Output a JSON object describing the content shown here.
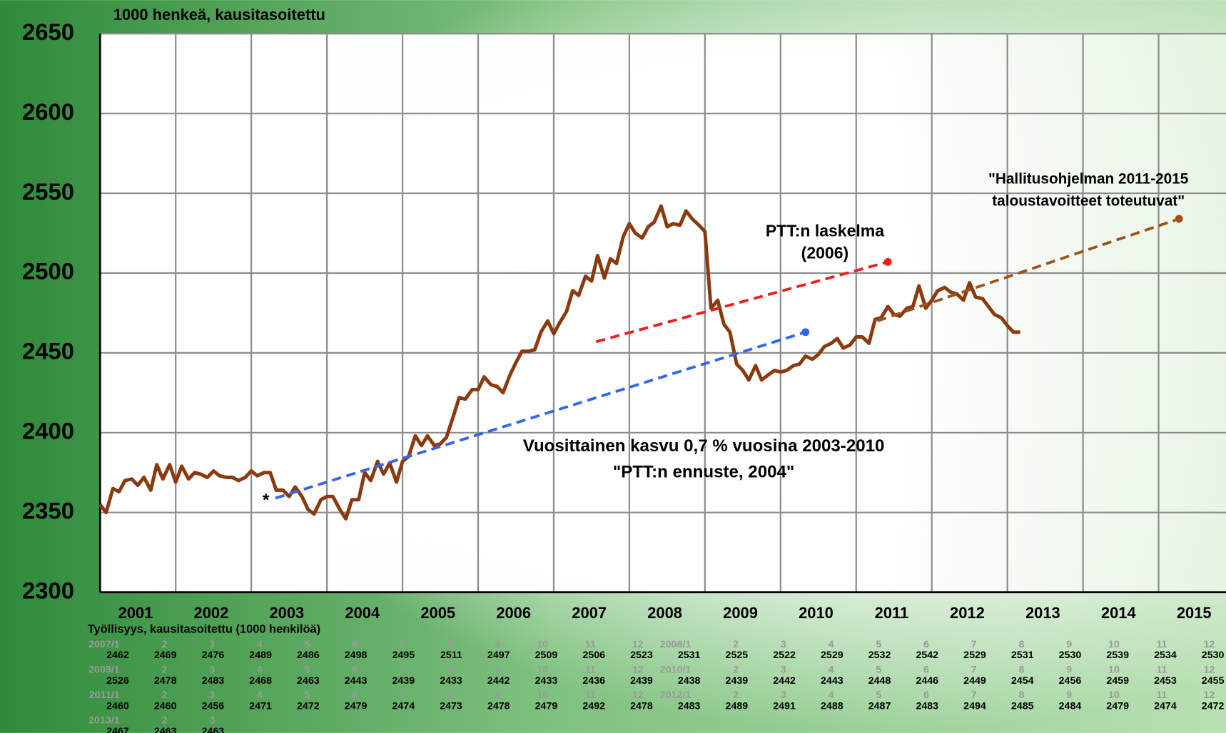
{
  "chart_data": {
    "type": "line",
    "title": "1000 henkeä, kausitasoitettu",
    "ylim": [
      2300,
      2650
    ],
    "yticks": [
      2300,
      2350,
      2400,
      2450,
      2500,
      2550,
      2600,
      2650
    ],
    "xlim": [
      2001,
      2016
    ],
    "xticks": [
      2001,
      2002,
      2003,
      2004,
      2005,
      2006,
      2007,
      2008,
      2009,
      2010,
      2011,
      2012,
      2013,
      2014,
      2015
    ],
    "grid": true,
    "series": [
      {
        "color": "#8b3a0f",
        "x": [
          2001,
          2001.08,
          2001.17,
          2001.25,
          2001.33,
          2001.42,
          2001.5,
          2001.58,
          2001.67,
          2001.75,
          2001.83,
          2001.92,
          2002,
          2002.08,
          2002.17,
          2002.25,
          2002.33,
          2002.42,
          2002.5,
          2002.58,
          2002.67,
          2002.75,
          2002.83,
          2002.92,
          2003,
          2003.08,
          2003.17,
          2003.25,
          2003.33,
          2003.42,
          2003.5,
          2003.58,
          2003.67,
          2003.75,
          2003.83,
          2003.92,
          2004,
          2004.08,
          2004.17,
          2004.25,
          2004.33,
          2004.42,
          2004.5,
          2004.58,
          2004.67,
          2004.75,
          2004.83,
          2004.92,
          2005,
          2005.08,
          2005.17,
          2005.25,
          2005.33,
          2005.42,
          2005.5,
          2005.58,
          2005.67,
          2005.75,
          2005.83,
          2005.92,
          2006,
          2006.08,
          2006.17,
          2006.25,
          2006.33,
          2006.42,
          2006.5,
          2006.58,
          2006.67,
          2006.75,
          2006.83,
          2006.92,
          2007,
          2007.08,
          2007.17,
          2007.25,
          2007.33,
          2007.42,
          2007.5,
          2007.58,
          2007.67,
          2007.75,
          2007.83,
          2007.92,
          2008,
          2008.08,
          2008.17,
          2008.25,
          2008.33,
          2008.42,
          2008.5,
          2008.58,
          2008.67,
          2008.75,
          2008.83,
          2008.92,
          2009,
          2009.08,
          2009.17,
          2009.25,
          2009.33,
          2009.42,
          2009.5,
          2009.58,
          2009.67,
          2009.75,
          2009.83,
          2009.92,
          2010,
          2010.08,
          2010.17,
          2010.25,
          2010.33,
          2010.42,
          2010.5,
          2010.58,
          2010.67,
          2010.75,
          2010.83,
          2010.92,
          2011,
          2011.08,
          2011.17,
          2011.25,
          2011.33,
          2011.42,
          2011.5,
          2011.58,
          2011.67,
          2011.75,
          2011.83,
          2011.92,
          2012,
          2012.08,
          2012.17,
          2012.25,
          2012.33,
          2012.42,
          2012.5,
          2012.58,
          2012.67,
          2012.75,
          2012.83,
          2012.92,
          2013,
          2013.08,
          2013.17
        ],
        "values": [
          2355,
          2350,
          2365,
          2363,
          2370,
          2371,
          2367,
          2372,
          2364,
          2380,
          2371,
          2380,
          2369,
          2379,
          2371,
          2375,
          2374,
          2372,
          2376,
          2373,
          2372,
          2372,
          2370,
          2372,
          2376,
          2373,
          2375,
          2375,
          2364,
          2364,
          2360,
          2366,
          2360,
          2352,
          2349,
          2358,
          2360,
          2360,
          2352,
          2346,
          2358,
          2358,
          2375,
          2370,
          2382,
          2374,
          2381,
          2369,
          2382,
          2385,
          2398,
          2392,
          2398,
          2392,
          2393,
          2397,
          2410,
          2422,
          2421,
          2427,
          2427,
          2435,
          2430,
          2429,
          2425,
          2436,
          2444,
          2451,
          2451,
          2452,
          2463,
          2470,
          2462,
          2469,
          2476,
          2489,
          2486,
          2498,
          2495,
          2511,
          2497,
          2509,
          2506,
          2523,
          2531,
          2525,
          2522,
          2529,
          2532,
          2542,
          2529,
          2531,
          2530,
          2539,
          2534,
          2530,
          2526,
          2478,
          2483,
          2468,
          2463,
          2443,
          2439,
          2433,
          2442,
          2433,
          2436,
          2439,
          2438,
          2439,
          2442,
          2443,
          2448,
          2446,
          2449,
          2454,
          2456,
          2459,
          2453,
          2455,
          2460,
          2460,
          2456,
          2471,
          2472,
          2479,
          2474,
          2473,
          2478,
          2479,
          2492,
          2478,
          2483,
          2489,
          2491,
          2488,
          2487,
          2483,
          2494,
          2485,
          2484,
          2479,
          2474,
          2472,
          2467,
          2463,
          2463
        ]
      },
      {
        "color": "#3366ee",
        "dashed": true,
        "x": [
          2003.32,
          2010.33
        ],
        "values": [
          2359,
          2463
        ]
      },
      {
        "color": "#e82020",
        "dashed": true,
        "x": [
          2007.56,
          2011.42
        ],
        "values": [
          2457,
          2507
        ]
      },
      {
        "color": "#a0521e",
        "dashed": true,
        "x": [
          2011.28,
          2015.27
        ],
        "values": [
          2470,
          2534
        ]
      }
    ],
    "annotations": [
      {
        "text": "Vuosittainen kasvu 0,7 % vuosina 2003-2010"
      },
      {
        "text": "\"PTT:n ennuste, 2004\""
      },
      {
        "text": "*"
      },
      {
        "text": "PTT:n laskelma"
      },
      {
        "text": "(2006)"
      },
      {
        "text": "\"Hallitusohjelman 2011-2015"
      },
      {
        "text": "taloustavoitteet toteutuvat\""
      }
    ],
    "table": {
      "title": "Työllisyys, kausitasoitettu (1000 henkilöä)",
      "labels": [
        "2007/1",
        "2",
        "3",
        "4",
        "5",
        "6",
        "7",
        "8",
        "9",
        "10",
        "11",
        "12",
        "2008/1",
        "2",
        "3",
        "4",
        "5",
        "6",
        "7",
        "8",
        "9",
        "10",
        "11",
        "12",
        "2009/1",
        "2",
        "3",
        "4",
        "5",
        "6",
        "7",
        "8",
        "9",
        "10",
        "11",
        "12",
        "2010/1",
        "2",
        "3",
        "4",
        "5",
        "6",
        "7",
        "8",
        "9",
        "10",
        "11",
        "12",
        "2011/1",
        "2",
        "3",
        "4",
        "5",
        "6",
        "7",
        "8",
        "9",
        "10",
        "11",
        "12",
        "2012/1",
        "2",
        "3",
        "4",
        "5",
        "6",
        "7",
        "8",
        "9",
        "10",
        "11",
        "12",
        "2013/1",
        "2",
        "3"
      ]
    }
  }
}
